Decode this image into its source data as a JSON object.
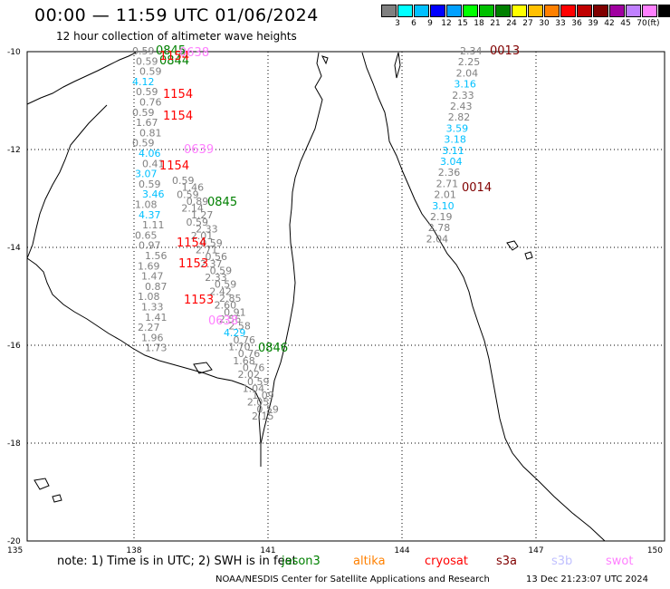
{
  "header": {
    "title": "00:00 — 11:59 UTC 01/06/2024",
    "subtitle": "12 hour collection of altimeter wave heights"
  },
  "legend": {
    "unit_label": "(ft)",
    "colors": [
      "#808080",
      "#00ffff",
      "#00c0ff",
      "#0000ff",
      "#00a0ff",
      "#00ff00",
      "#00c000",
      "#008000",
      "#ffff00",
      "#ffc000",
      "#ff8000",
      "#ff0000",
      "#c00000",
      "#800000",
      "#a000a0",
      "#c080ff",
      "#ff80ff",
      "#000000"
    ],
    "labels": [
      "3",
      "6",
      "9",
      "12",
      "15",
      "18",
      "21",
      "24",
      "27",
      "30",
      "33",
      "36",
      "39",
      "42",
      "45",
      "70"
    ]
  },
  "axes": {
    "lat_labels": [
      "-10",
      "-12",
      "-14",
      "-16",
      "-18",
      "-20"
    ],
    "lon_labels": [
      "135",
      "138",
      "141",
      "144",
      "147",
      "150"
    ]
  },
  "pass_times": [
    {
      "text": "0013",
      "color": "#800000"
    },
    {
      "text": "0014",
      "color": "#800000"
    },
    {
      "text": "1154",
      "color": "#ff0000"
    },
    {
      "text": "1154",
      "color": "#ff0000"
    },
    {
      "text": "0639",
      "color": "#ff80ff"
    },
    {
      "text": "1154",
      "color": "#ff0000"
    },
    {
      "text": "0845",
      "color": "#008000"
    },
    {
      "text": "1154",
      "color": "#ff0000"
    },
    {
      "text": "1153",
      "color": "#ff0000"
    },
    {
      "text": "1153",
      "color": "#ff0000"
    },
    {
      "text": "0846",
      "color": "#008000"
    },
    {
      "text": "0638",
      "color": "#ff80ff"
    },
    {
      "text": "0845",
      "color": "#008000"
    },
    {
      "text": "0844",
      "color": "#008000"
    },
    {
      "text": "1154",
      "color": "#ff0000"
    },
    {
      "text": "0638",
      "color": "#ff80ff"
    }
  ],
  "swh_track_east": [
    {
      "v": "2.34",
      "c": "#808080"
    },
    {
      "v": "2.25",
      "c": "#808080"
    },
    {
      "v": "2.04",
      "c": "#808080"
    },
    {
      "v": "3.16",
      "c": "#00c0ff"
    },
    {
      "v": "2.33",
      "c": "#808080"
    },
    {
      "v": "2.43",
      "c": "#808080"
    },
    {
      "v": "2.82",
      "c": "#808080"
    },
    {
      "v": "3.59",
      "c": "#00c0ff"
    },
    {
      "v": "3.18",
      "c": "#00c0ff"
    },
    {
      "v": "3.11",
      "c": "#00c0ff"
    },
    {
      "v": "3.04",
      "c": "#00c0ff"
    },
    {
      "v": "2.36",
      "c": "#808080"
    },
    {
      "v": "2.71",
      "c": "#808080"
    },
    {
      "v": "2.01",
      "c": "#808080"
    },
    {
      "v": "3.10",
      "c": "#00c0ff"
    },
    {
      "v": "2.19",
      "c": "#808080"
    },
    {
      "v": "2.78",
      "c": "#808080"
    },
    {
      "v": "2.04",
      "c": "#808080"
    }
  ],
  "swh_track_west": [
    {
      "v": "0.59",
      "c": "#808080"
    },
    {
      "v": "0.59",
      "c": "#808080"
    },
    {
      "v": "0.59",
      "c": "#808080"
    },
    {
      "v": "4.12",
      "c": "#00c0ff"
    },
    {
      "v": "0.59",
      "c": "#808080"
    },
    {
      "v": "0.76",
      "c": "#808080"
    },
    {
      "v": "0.59",
      "c": "#808080"
    },
    {
      "v": "1.67",
      "c": "#808080"
    },
    {
      "v": "0.81",
      "c": "#808080"
    },
    {
      "v": "0.59",
      "c": "#808080"
    },
    {
      "v": "4.06",
      "c": "#00c0ff"
    },
    {
      "v": "0.41",
      "c": "#808080"
    },
    {
      "v": "3.07",
      "c": "#00c0ff"
    },
    {
      "v": "0.59",
      "c": "#808080"
    },
    {
      "v": "3.46",
      "c": "#00c0ff"
    },
    {
      "v": "1.08",
      "c": "#808080"
    },
    {
      "v": "4.37",
      "c": "#00c0ff"
    },
    {
      "v": "1.11",
      "c": "#808080"
    },
    {
      "v": "0.65",
      "c": "#808080"
    },
    {
      "v": "0.97",
      "c": "#808080"
    },
    {
      "v": "1.56",
      "c": "#808080"
    },
    {
      "v": "1.69",
      "c": "#808080"
    },
    {
      "v": "1.47",
      "c": "#808080"
    },
    {
      "v": "0.87",
      "c": "#808080"
    },
    {
      "v": "1.08",
      "c": "#808080"
    },
    {
      "v": "1.33",
      "c": "#808080"
    },
    {
      "v": "1.41",
      "c": "#808080"
    },
    {
      "v": "2.27",
      "c": "#808080"
    },
    {
      "v": "1.96",
      "c": "#808080"
    },
    {
      "v": "1.73",
      "c": "#808080"
    }
  ],
  "swh_track_mid": [
    {
      "v": "0.59",
      "c": "#808080"
    },
    {
      "v": "1.46",
      "c": "#808080"
    },
    {
      "v": "0.59",
      "c": "#808080"
    },
    {
      "v": "0.89",
      "c": "#808080"
    },
    {
      "v": "2.14",
      "c": "#808080"
    },
    {
      "v": "1.27",
      "c": "#808080"
    },
    {
      "v": "0.59",
      "c": "#808080"
    },
    {
      "v": "2.33",
      "c": "#808080"
    },
    {
      "v": "2.01",
      "c": "#808080"
    },
    {
      "v": "0.59",
      "c": "#808080"
    },
    {
      "v": "2.71",
      "c": "#808080"
    },
    {
      "v": "0.56",
      "c": "#808080"
    },
    {
      "v": "2.37",
      "c": "#808080"
    },
    {
      "v": "0.59",
      "c": "#808080"
    },
    {
      "v": "2.33",
      "c": "#808080"
    },
    {
      "v": "0.59",
      "c": "#808080"
    },
    {
      "v": "2.42",
      "c": "#808080"
    },
    {
      "v": "2.85",
      "c": "#808080"
    },
    {
      "v": "2.60",
      "c": "#808080"
    },
    {
      "v": "0.91",
      "c": "#808080"
    },
    {
      "v": "2.56",
      "c": "#808080"
    },
    {
      "v": "2.58",
      "c": "#808080"
    },
    {
      "v": "4.29",
      "c": "#00c0ff"
    },
    {
      "v": "0.76",
      "c": "#808080"
    },
    {
      "v": "1.70",
      "c": "#808080"
    },
    {
      "v": "0.76",
      "c": "#808080"
    },
    {
      "v": "1.68",
      "c": "#808080"
    },
    {
      "v": "0.76",
      "c": "#808080"
    },
    {
      "v": "2.02",
      "c": "#808080"
    },
    {
      "v": "0.59",
      "c": "#808080"
    },
    {
      "v": "1.04",
      "c": "#808080"
    },
    {
      "v": "1.09",
      "c": "#808080"
    },
    {
      "v": "2.05",
      "c": "#808080"
    },
    {
      "v": "0.59",
      "c": "#808080"
    },
    {
      "v": "2.15",
      "c": "#808080"
    }
  ],
  "notes": {
    "note_text": "note:  1) Time is in UTC; 2) SWH is in feet",
    "sat_jason": {
      "text": "jason3",
      "color": "#008000"
    },
    "sat_altika": {
      "text": "altika",
      "color": "#ff8000"
    },
    "sat_cryosat": {
      "text": "cryosat",
      "color": "#ff0000"
    },
    "sat_s3a": {
      "text": "s3a",
      "color": "#800000"
    },
    "sat_s3b": {
      "text": "s3b",
      "color": "#c0c0ff"
    },
    "sat_swot": {
      "text": "swot",
      "color": "#ff80ff"
    }
  },
  "footer": {
    "org": "NOAA/NESDIS Center for Satellite Applications and Research",
    "date": "13 Dec 21:23:07 UTC 2024"
  }
}
